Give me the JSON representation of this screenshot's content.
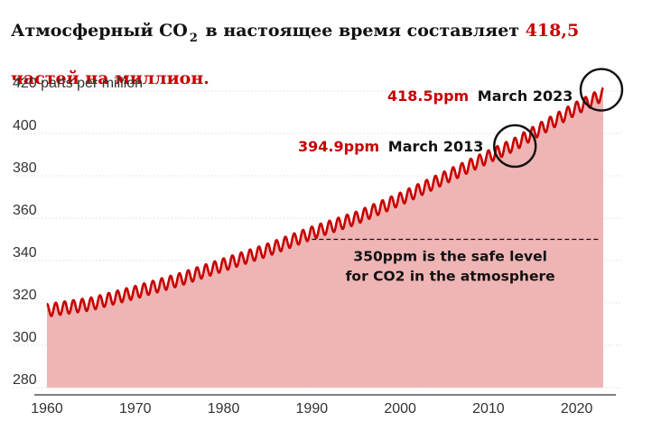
{
  "title": {
    "part1": "Атмосферный CO",
    "sub": "2",
    "part2": " в настоящее время составляет ",
    "highlight": "418,5",
    "line2": "частей на миллион."
  },
  "colors": {
    "accent": "#c70000",
    "area": "#efb5b5",
    "grid": "#dcdcdc",
    "text": "#121212"
  },
  "chart_data": {
    "type": "area",
    "ylabel": "420 parts per million",
    "ylim": [
      280,
      420
    ],
    "xlim": [
      1960,
      2023
    ],
    "x_ticks": [
      "1960",
      "1970",
      "1980",
      "1990",
      "2000",
      "2010",
      "2020"
    ],
    "y_ticks": [
      "280",
      "300",
      "320",
      "340",
      "360",
      "380",
      "400"
    ],
    "grid": "horizontal dotted",
    "seasonal_amplitude_ppm": 3,
    "trend": [
      {
        "year": 1960,
        "ppm": 316.5
      },
      {
        "year": 1965,
        "ppm": 319.5
      },
      {
        "year": 1970,
        "ppm": 325
      },
      {
        "year": 1975,
        "ppm": 331
      },
      {
        "year": 1980,
        "ppm": 338
      },
      {
        "year": 1985,
        "ppm": 345
      },
      {
        "year": 1990,
        "ppm": 353
      },
      {
        "year": 1995,
        "ppm": 360
      },
      {
        "year": 2000,
        "ppm": 369
      },
      {
        "year": 2005,
        "ppm": 379
      },
      {
        "year": 2010,
        "ppm": 389
      },
      {
        "year": 2013,
        "ppm": 394.9
      },
      {
        "year": 2015,
        "ppm": 400
      },
      {
        "year": 2020,
        "ppm": 412
      },
      {
        "year": 2023,
        "ppm": 418.5
      }
    ],
    "reference_line": {
      "value": 350,
      "from_year": 1990,
      "label_line1": "350ppm is the safe level",
      "label_line2": "for CO2 in the atmosphere"
    },
    "annotations": [
      {
        "value_text": "394.9ppm",
        "date_text": "March 2013",
        "year": 2013,
        "ppm": 394.9
      },
      {
        "value_text": "418.5ppm",
        "date_text": "March 2023",
        "year": 2023,
        "ppm": 418.5
      }
    ]
  }
}
